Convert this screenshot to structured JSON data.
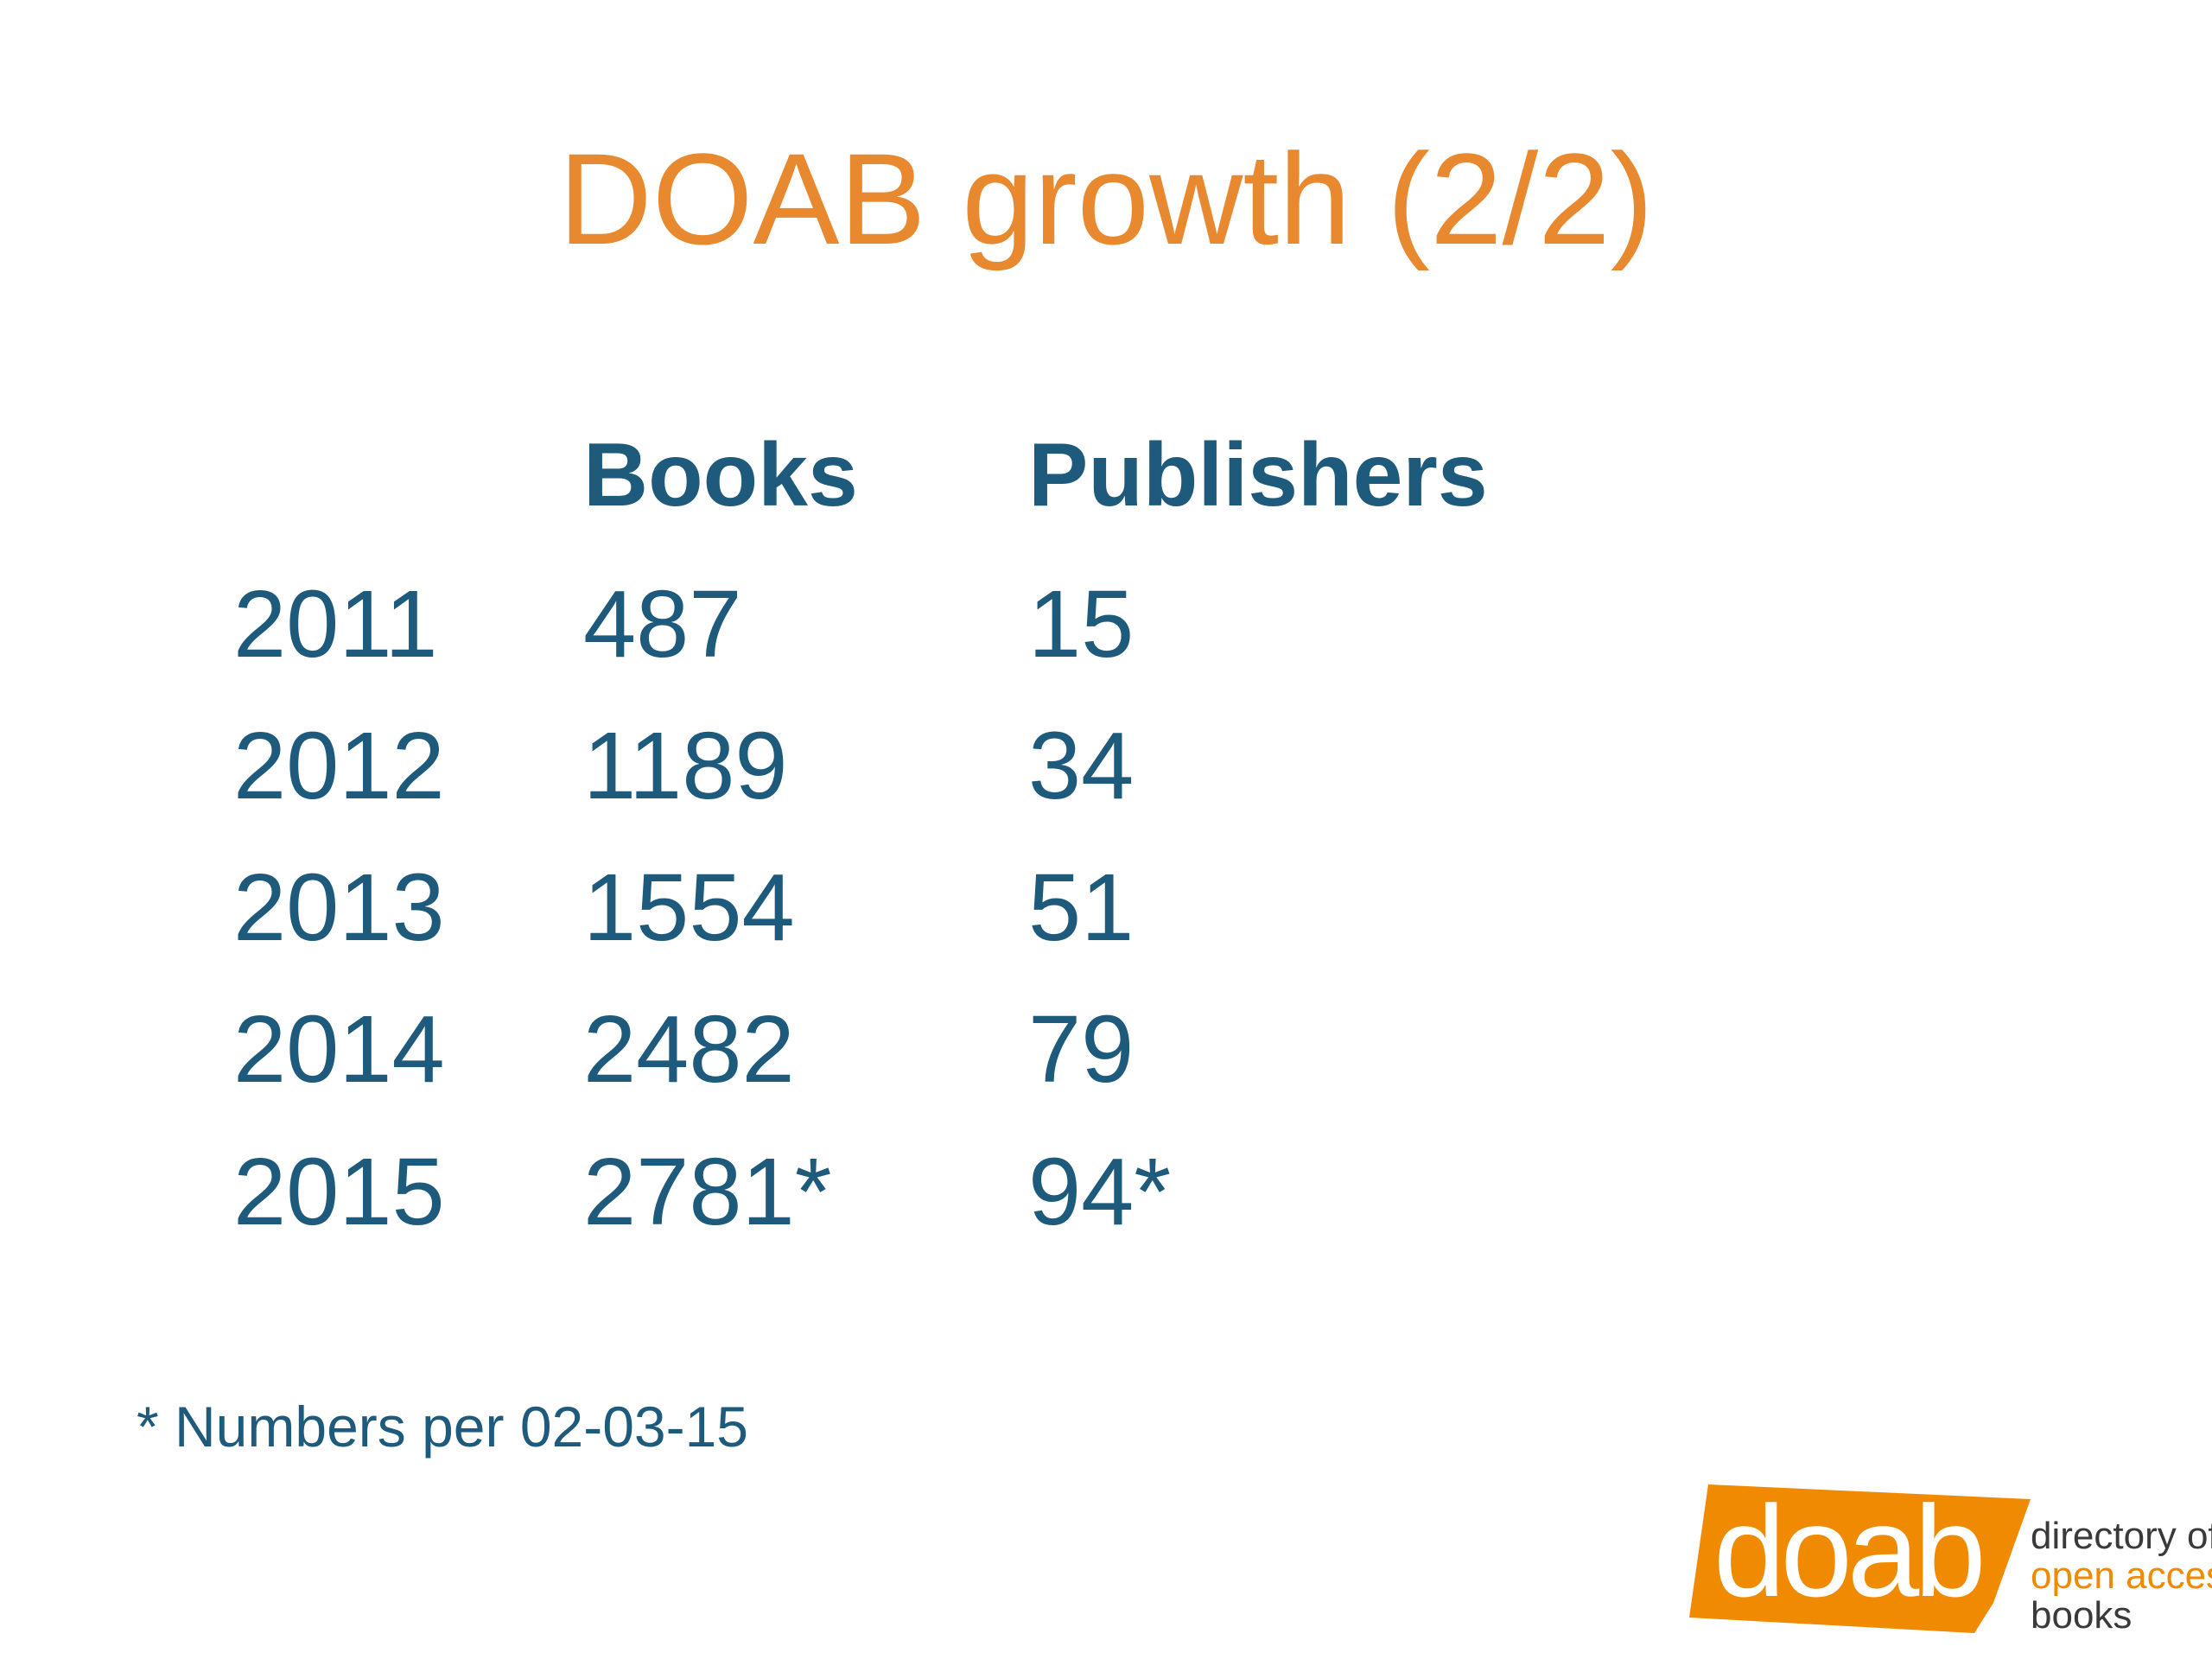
{
  "slide": {
    "title": "DOAB growth (2/2)",
    "table": {
      "headers": [
        "",
        "Books",
        "Publishers"
      ],
      "rows": [
        {
          "year": "2011",
          "books": "487",
          "publishers": "15"
        },
        {
          "year": "2012",
          "books": "1189",
          "publishers": "34"
        },
        {
          "year": "2013",
          "books": "1554",
          "publishers": "51"
        },
        {
          "year": "2014",
          "books": "2482",
          "publishers": "79"
        },
        {
          "year": "2015",
          "books": "2781*",
          "publishers": "94*"
        }
      ]
    },
    "footnote": "* Numbers per 02-03-15",
    "logo": {
      "wordmark": "doab",
      "line1": "directory of",
      "line2": "open access",
      "line3": "books"
    },
    "colors": {
      "title": "#e8892f",
      "body_text": "#1e5a7c",
      "logo_orange": "#f08a00",
      "logo_gray": "#3a3a3a"
    }
  }
}
